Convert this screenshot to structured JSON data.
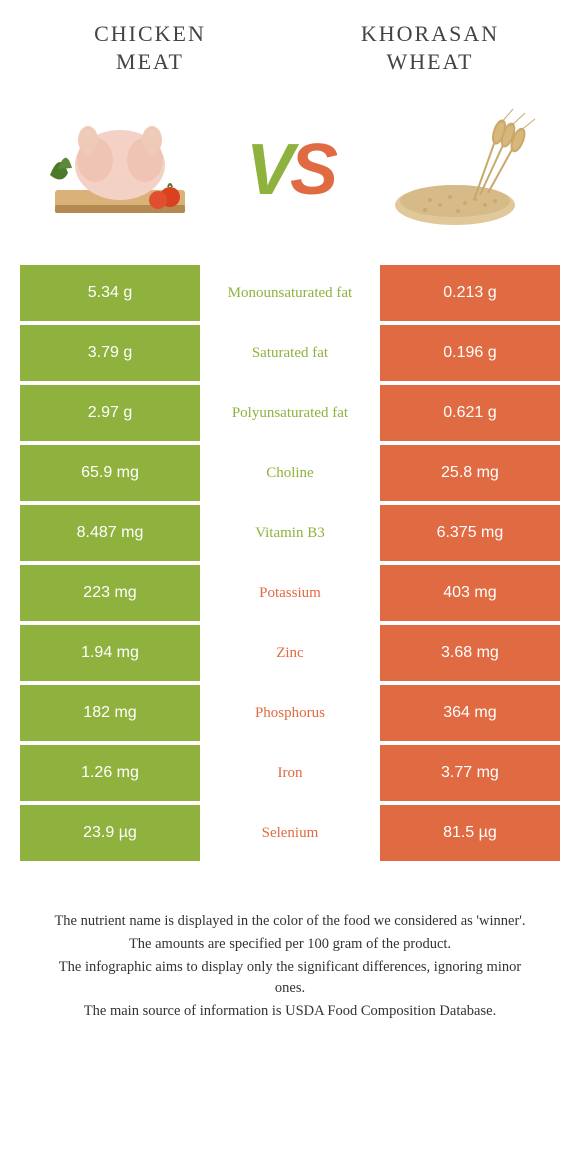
{
  "colors": {
    "left": "#8fb23e",
    "right": "#e06a42",
    "bg": "#ffffff",
    "text": "#333333"
  },
  "titles": {
    "left_line1": "CHICKEN",
    "left_line2": "MEAT",
    "right_line1": "KHORASAN",
    "right_line2": "WHEAT"
  },
  "vs": {
    "v": "V",
    "s": "S"
  },
  "rows": [
    {
      "left": "5.34 g",
      "label": "Monounsaturated fat",
      "right": "0.213 g",
      "winner": "left"
    },
    {
      "left": "3.79 g",
      "label": "Saturated fat",
      "right": "0.196 g",
      "winner": "left"
    },
    {
      "left": "2.97 g",
      "label": "Polyunsaturated fat",
      "right": "0.621 g",
      "winner": "left"
    },
    {
      "left": "65.9 mg",
      "label": "Choline",
      "right": "25.8 mg",
      "winner": "left"
    },
    {
      "left": "8.487 mg",
      "label": "Vitamin B3",
      "right": "6.375 mg",
      "winner": "left"
    },
    {
      "left": "223 mg",
      "label": "Potassium",
      "right": "403 mg",
      "winner": "right"
    },
    {
      "left": "1.94 mg",
      "label": "Zinc",
      "right": "3.68 mg",
      "winner": "right"
    },
    {
      "left": "182 mg",
      "label": "Phosphorus",
      "right": "364 mg",
      "winner": "right"
    },
    {
      "left": "1.26 mg",
      "label": "Iron",
      "right": "3.77 mg",
      "winner": "right"
    },
    {
      "left": "23.9 µg",
      "label": "Selenium",
      "right": "81.5 µg",
      "winner": "right"
    }
  ],
  "footnotes": {
    "line1": "The nutrient name is displayed in the color of the food we considered as 'winner'.",
    "line2": "The amounts are specified per 100 gram of the product.",
    "line3": "The infographic aims to display only the significant differences, ignoring minor ones.",
    "line4": "The main source of information is USDA Food Composition Database."
  }
}
